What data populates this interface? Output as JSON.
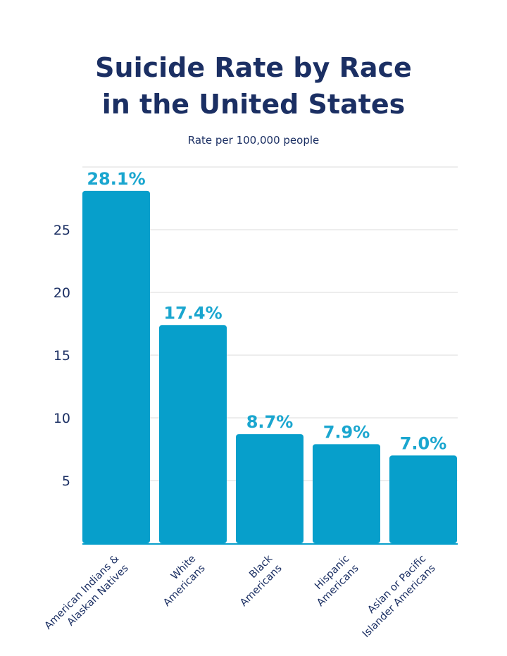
{
  "chart_data": {
    "type": "bar",
    "title_lines": [
      "Suicide Rate by Race",
      "in the United States"
    ],
    "subtitle": "Rate per 100,000 people",
    "categories": [
      [
        "American Indians &",
        "Alaskan Natives"
      ],
      [
        "White",
        "Americans"
      ],
      [
        "Black",
        "Americans"
      ],
      [
        "Hispanic",
        "Americans"
      ],
      [
        "Asian or Pacific",
        "Islander Americans"
      ]
    ],
    "values": [
      28.1,
      17.4,
      8.7,
      7.9,
      7.0
    ],
    "data_labels": [
      "28.1%",
      "17.4%",
      "8.7%",
      "7.9%",
      "7.0%"
    ],
    "yticks": [
      5,
      10,
      15,
      20,
      25
    ],
    "ylim": [
      0,
      30
    ],
    "grid": true,
    "colors": {
      "bar": "#079fcb",
      "label": "#1aa6cf",
      "text": "#1b2f63",
      "grid": "#e2e2e2"
    }
  }
}
